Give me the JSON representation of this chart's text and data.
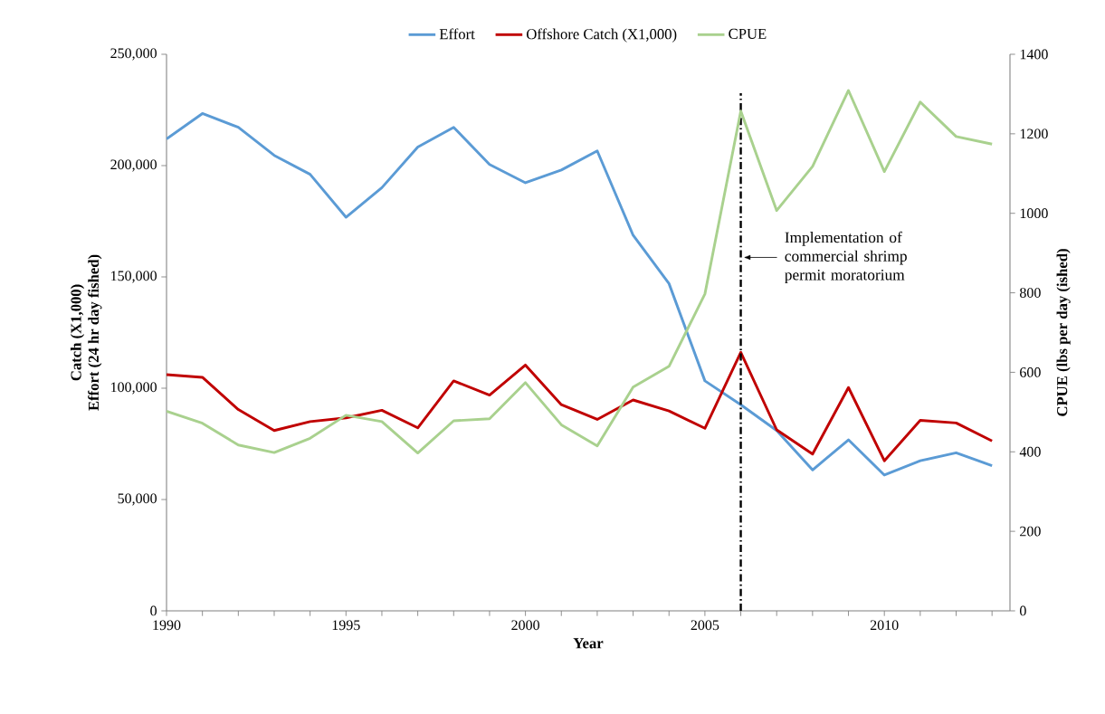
{
  "chart_data": {
    "type": "line",
    "xlabel": "Year",
    "ylabel": "Catch (X1,000)\nEffort (24 hr day fished)",
    "y2label": "CPUE (lbs per day (ished)",
    "x": [
      1990,
      1991,
      1992,
      1993,
      1994,
      1995,
      1996,
      1997,
      1998,
      1999,
      2000,
      2001,
      2002,
      2003,
      2004,
      2005,
      2006,
      2007,
      2008,
      2009,
      2010,
      2011,
      2012,
      2013
    ],
    "series": [
      {
        "name": "Effort",
        "color": "#5b9bd5",
        "values": [
          212000,
          223400,
          217200,
          204600,
          196100,
          176800,
          190100,
          208300,
          217200,
          200500,
          192300,
          198000,
          206600,
          168700,
          147000,
          103300,
          92600,
          81000,
          63300,
          76800,
          61000,
          67400,
          71000,
          65200
        ]
      },
      {
        "name": "Offshore Catch (X1,000)",
        "color": "#c00000",
        "values": [
          106100,
          104900,
          90400,
          81000,
          85000,
          86700,
          90100,
          82200,
          103300,
          96900,
          110400,
          92600,
          86000,
          94700,
          89800,
          82000,
          116100,
          81300,
          70400,
          100300,
          67400,
          85600,
          84400,
          76300
        ]
      },
      {
        "name": "CPUE",
        "color": "#a9d18e",
        "axis": "y2",
        "values": [
          502,
          472,
          417,
          398,
          434,
          492,
          476,
          397,
          478,
          483,
          574,
          468,
          415,
          563,
          615,
          797,
          1257,
          1007,
          1118,
          1309,
          1105,
          1280,
          1193,
          1174
        ]
      }
    ],
    "xlim": [
      1990,
      2013.5
    ],
    "xticks": [
      1990,
      {
        "value": 1991,
        "label": null
      },
      {
        "value": 1992,
        "label": null
      },
      {
        "value": 1993,
        "label": null
      },
      {
        "value": 1994,
        "label": null
      },
      1995,
      {
        "value": 1996,
        "label": null
      },
      {
        "value": 1997,
        "label": null
      },
      {
        "value": 1998,
        "label": null
      },
      {
        "value": 1999,
        "label": null
      },
      2000,
      {
        "value": 2001,
        "label": null
      },
      {
        "value": 2002,
        "label": null
      },
      {
        "value": 2003,
        "label": null
      },
      {
        "value": 2004,
        "label": null
      },
      2005,
      {
        "value": 2006,
        "label": null
      },
      {
        "value": 2007,
        "label": null
      },
      {
        "value": 2008,
        "label": null
      },
      {
        "value": 2009,
        "label": null
      },
      2010,
      {
        "value": 2011,
        "label": null
      },
      {
        "value": 2012,
        "label": null
      },
      {
        "value": 2013,
        "label": null
      }
    ],
    "ylim": [
      0,
      250000
    ],
    "yticks": [
      0,
      {
        "value": 50000,
        "label": "50,000"
      },
      {
        "value": 100000,
        "label": "100,000"
      },
      {
        "value": 150000,
        "label": "150,000"
      },
      {
        "value": 200000,
        "label": "200,000"
      },
      {
        "value": 250000,
        "label": "250,000"
      }
    ],
    "y2lim": [
      0,
      1400
    ],
    "y2ticks": [
      0,
      200,
      400,
      600,
      800,
      1000,
      1200,
      1400
    ],
    "ref_lines": [
      {
        "axis": "x",
        "value": 2006,
        "label": "Implementation of commercial shrimp permit moratorium",
        "color": "#000000",
        "line_style": "dashdot"
      }
    ],
    "legend": "top"
  }
}
